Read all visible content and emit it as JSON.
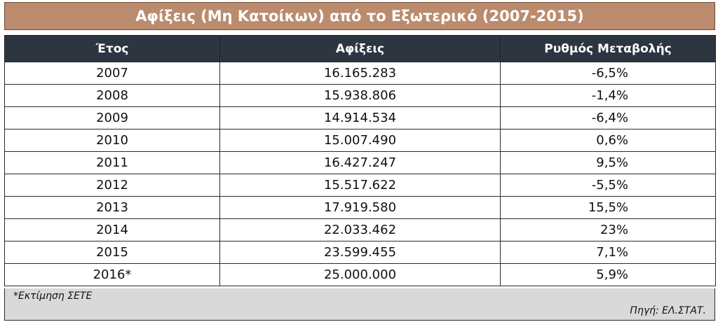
{
  "chart_data": {
    "type": "table",
    "title": "Αφίξεις (Μη Κατοίκων) από το Εξωτερικό (2007-2015)",
    "columns": [
      "Έτος",
      "Αφίξεις",
      "Ρυθμός Μεταβολής"
    ],
    "rows": [
      {
        "year": "2007",
        "arrivals": "16.165.283",
        "rate": "-6,5%"
      },
      {
        "year": "2008",
        "arrivals": "15.938.806",
        "rate": "-1,4%"
      },
      {
        "year": "2009",
        "arrivals": "14.914.534",
        "rate": "-6,4%"
      },
      {
        "year": "2010",
        "arrivals": "15.007.490",
        "rate": "0,6%"
      },
      {
        "year": "2011",
        "arrivals": "16.427.247",
        "rate": "9,5%"
      },
      {
        "year": "2012",
        "arrivals": "15.517.622",
        "rate": "-5,5%"
      },
      {
        "year": "2013",
        "arrivals": "17.919.580",
        "rate": "15,5%"
      },
      {
        "year": "2014",
        "arrivals": "22.033.462",
        "rate": "23%"
      },
      {
        "year": "2015",
        "arrivals": "23.599.455",
        "rate": "7,1%"
      },
      {
        "year": "2016*",
        "arrivals": "25.000.000",
        "rate": "5,9%"
      }
    ],
    "note": "*Εκτίμηση ΣΕΤΕ",
    "source": "Πηγή: ΕΛ.ΣΤΑΤ."
  },
  "colors": {
    "title_bg": "#bb8b6e",
    "header_bg": "#2d3540",
    "footer_bg": "#d9d9d9"
  }
}
